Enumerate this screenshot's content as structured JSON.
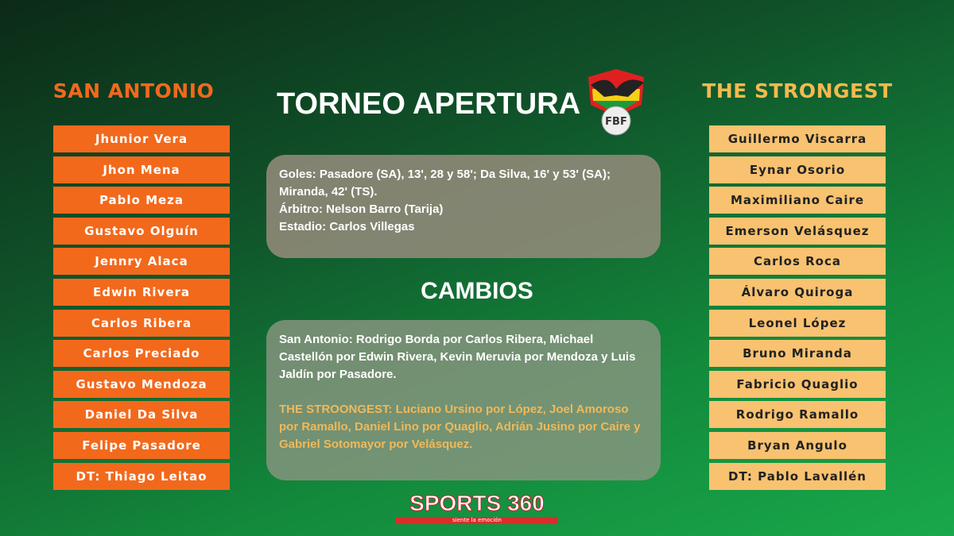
{
  "home": {
    "name": "SAN  ANTONIO",
    "color": "#f2691c",
    "players": [
      "Jhunior Vera",
      "Jhon Mena",
      "Pablo Meza",
      "Gustavo Olguín",
      "Jennry Alaca",
      "Edwin Rivera",
      "Carlos Ribera",
      "Carlos Preciado",
      "Gustavo Mendoza",
      "Daniel Da Silva",
      "Felipe Pasadore",
      "DT: Thiago Leitao"
    ]
  },
  "away": {
    "name": "THE STRONGEST",
    "color": "#f8c270",
    "players": [
      "Guillermo Viscarra",
      "Eynar Osorio",
      "Maximiliano Caire",
      "Emerson Velásquez",
      "Carlos Roca",
      "Álvaro Quiroga",
      "Leonel López",
      "Bruno Miranda",
      "Fabricio Quaglio",
      "Rodrigo Ramallo",
      "Bryan Angulo",
      "DT: Pablo Lavallén"
    ]
  },
  "title": "TORNEO APERTURA",
  "logo_text": "FBF",
  "info": {
    "goals": "Goles: Pasadore (SA), 13', 28 y 58'; Da Silva, 16' y 53' (SA); Miranda, 42' (TS).",
    "referee": "Árbitro: Nelson Barro (Tarija)",
    "stadium": "Estadio: Carlos Villegas"
  },
  "changes": {
    "title": "CAMBIOS",
    "home": "San Antonio:  Rodrigo Borda por Carlos Ribera, Michael Castellón por Edwin Rivera, Kevin Meruvia por Mendoza y Luis Jaldín por Pasadore.",
    "away": "THE STROONGEST:  Luciano Ursino por López, Joel Amoroso por Ramallo, Daniel Lino por Quaglio, Adrián Jusino por Caire y Gabriel Sotomayor por Velásquez."
  },
  "brand": {
    "name": "SPORTS 360",
    "tagline": "siente la emoción"
  }
}
